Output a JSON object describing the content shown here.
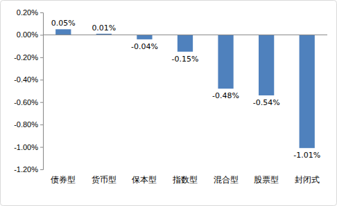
{
  "chart_data": {
    "type": "bar",
    "categories": [
      "债券型",
      "货币型",
      "保本型",
      "指数型",
      "混合型",
      "股票型",
      "封闭式"
    ],
    "values": [
      0.05,
      0.01,
      -0.04,
      -0.15,
      -0.48,
      -0.54,
      -1.01
    ],
    "value_labels": [
      "0.05%",
      "0.01%",
      "-0.04%",
      "-0.15%",
      "-0.48%",
      "-0.54%",
      "-1.01%"
    ],
    "color": "#4f81bd",
    "ylim": [
      -1.2,
      0.2
    ],
    "yticks": [
      {
        "value": 0.2,
        "label": "0.20%"
      },
      {
        "value": 0,
        "label": "0.00%"
      },
      {
        "value": -0.2,
        "label": "-0.20%"
      },
      {
        "value": -0.4,
        "label": "-0.40%"
      },
      {
        "value": -0.6,
        "label": "-0.60%"
      },
      {
        "value": -0.8,
        "label": "-0.80%"
      },
      {
        "value": -1,
        "label": "-1.00%"
      },
      {
        "value": -1.2,
        "label": "-1.20%"
      }
    ],
    "grid": false,
    "data_labels": true
  }
}
